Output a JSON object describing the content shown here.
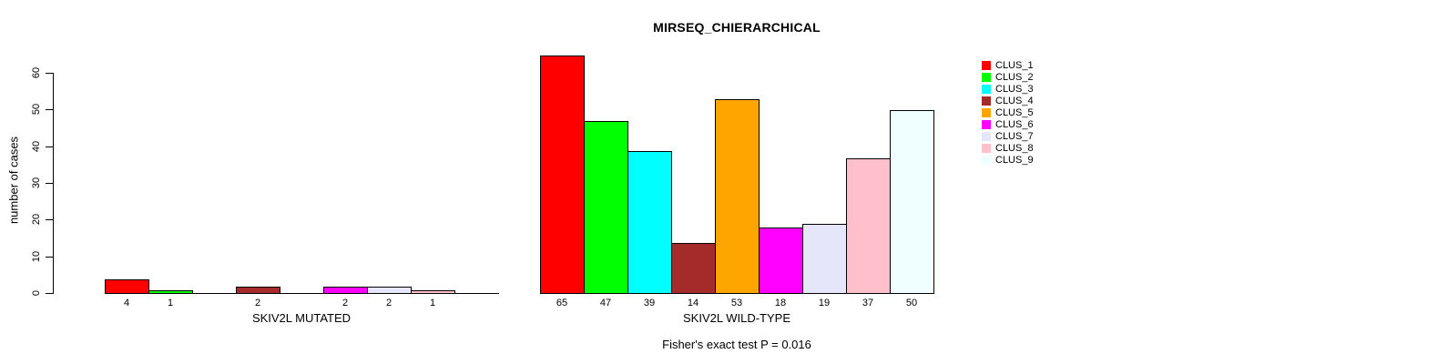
{
  "chart_data": {
    "type": "bar",
    "title": "MIRSEQ_CHIERARCHICAL",
    "ylabel": "number of cases",
    "ylim": [
      0,
      60
    ],
    "yticks": [
      0,
      10,
      20,
      30,
      40,
      50,
      60
    ],
    "grid": false,
    "legend_position": "right",
    "categories": [
      "CLUS_1",
      "CLUS_2",
      "CLUS_3",
      "CLUS_4",
      "CLUS_5",
      "CLUS_6",
      "CLUS_7",
      "CLUS_8",
      "CLUS_9"
    ],
    "colors": [
      "#FF0000",
      "#00FF00",
      "#00FFFF",
      "#A52A2A",
      "#FFA500",
      "#FF00FF",
      "#E6E6FA",
      "#FFC0CB",
      "#F0FFFF"
    ],
    "series": [
      {
        "name": "SKIV2L MUTATED",
        "values": [
          4,
          1,
          0,
          2,
          0,
          2,
          2,
          1,
          0
        ]
      },
      {
        "name": "SKIV2L WILD-TYPE",
        "values": [
          65,
          47,
          39,
          14,
          53,
          18,
          19,
          37,
          50
        ]
      }
    ],
    "bar_value_labels_shown_only_when_nonzero": true,
    "annotation": "Fisher's exact test P = 0.016",
    "axis_color": "#000000",
    "background_color": "#FFFFFF",
    "text_color": "#000000"
  }
}
